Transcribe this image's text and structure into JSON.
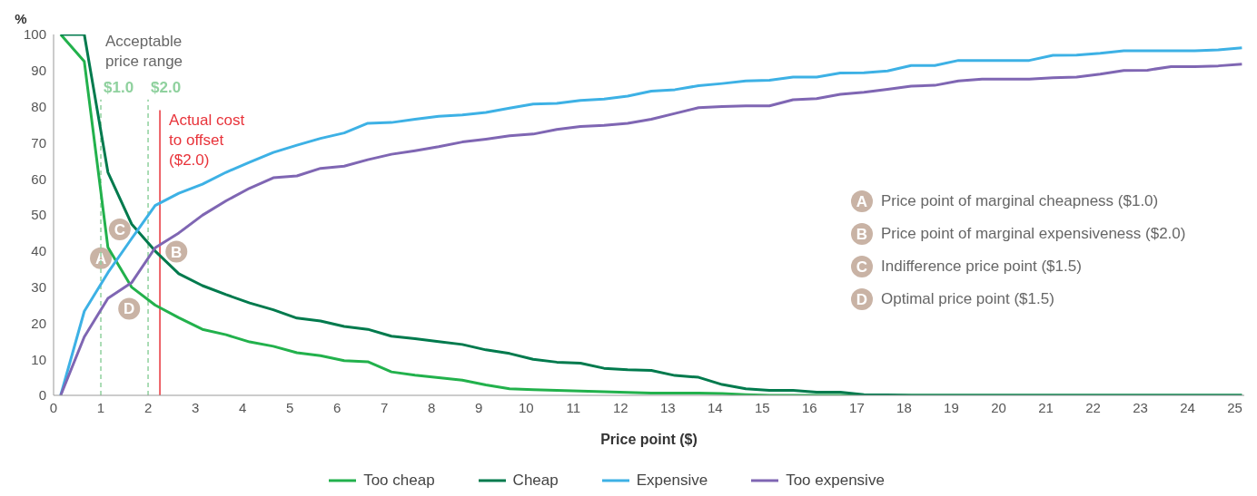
{
  "chart_data": {
    "type": "line",
    "ylabel": "%",
    "xlabel": "Price point ($)",
    "x": [
      0.15,
      0.65,
      1.15,
      1.65,
      2.15,
      2.65,
      3.15,
      3.65,
      4.15,
      4.65,
      5.15,
      5.65,
      6.15,
      6.65,
      7.15,
      7.65,
      8.15,
      8.65,
      9.15,
      9.65,
      10.15,
      10.65,
      11.15,
      11.65,
      12.15,
      12.65,
      13.15,
      13.65,
      14.15,
      14.65,
      15.15,
      15.65,
      16.15,
      16.65,
      17.15,
      17.65,
      18.15,
      18.65,
      19.15,
      19.65,
      20.15,
      20.65,
      21.15,
      21.65,
      22.15,
      22.65,
      23.15,
      23.65,
      24.15,
      24.65,
      25.15
    ],
    "series": [
      {
        "name": "Too cheap",
        "color": "#22b14c",
        "values": [
          100,
          92.5,
          41,
          30,
          25,
          21.5,
          18.3,
          16.8,
          14.8,
          13.6,
          11.8,
          11,
          9.6,
          9.3,
          6.5,
          5.6,
          4.9,
          4.2,
          2.9,
          1.8,
          1.6,
          1.4,
          1.2,
          1,
          0.8,
          0.6,
          0.6,
          0.6,
          0.5,
          0.2,
          0,
          0,
          0,
          0,
          0,
          0,
          0,
          0,
          0,
          0,
          0,
          0,
          0,
          0,
          0,
          0,
          0,
          0,
          0,
          0,
          0
        ]
      },
      {
        "name": "Cheap",
        "color": "#007a4d",
        "values": [
          100,
          100,
          61.8,
          47.5,
          40,
          33.7,
          30.4,
          27.9,
          25.6,
          23.7,
          21.4,
          20.6,
          19.1,
          18.3,
          16.4,
          15.7,
          14.9,
          14.1,
          12.6,
          11.6,
          10,
          9.2,
          8.9,
          7.5,
          7.1,
          6.9,
          5.5,
          5,
          3,
          1.8,
          1.4,
          1.4,
          0.9,
          0.9,
          0.2,
          0.1,
          0,
          0,
          0,
          0,
          0,
          0,
          0,
          0,
          0,
          0,
          0,
          0,
          0,
          0,
          0
        ]
      },
      {
        "name": "Expensive",
        "color": "#3db1e5",
        "values": [
          0,
          23.3,
          34,
          43.4,
          52.6,
          56,
          58.5,
          61.8,
          64.6,
          67.3,
          69.3,
          71.2,
          72.7,
          75.4,
          75.6,
          76.5,
          77.3,
          77.7,
          78.4,
          79.6,
          80.7,
          80.9,
          81.7,
          82.1,
          82.9,
          84.3,
          84.7,
          85.8,
          86.4,
          87.1,
          87.3,
          88.2,
          88.2,
          89.3,
          89.4,
          89.9,
          91.4,
          91.4,
          92.8,
          92.8,
          92.8,
          92.8,
          94.2,
          94.3,
          94.8,
          95.5,
          95.5,
          95.5,
          95.5,
          95.7,
          96.3
        ]
      },
      {
        "name": "Too expensive",
        "color": "#7f66b3",
        "values": [
          0,
          16.2,
          26.9,
          31.2,
          40.9,
          45,
          49.9,
          53.9,
          57.4,
          60.3,
          60.8,
          62.9,
          63.5,
          65.3,
          66.8,
          67.8,
          68.9,
          70.2,
          71,
          71.9,
          72.4,
          73.7,
          74.5,
          74.8,
          75.4,
          76.5,
          78.1,
          79.7,
          80,
          80.2,
          80.2,
          81.9,
          82.2,
          83.4,
          84,
          84.8,
          85.7,
          85.9,
          87.1,
          87.6,
          87.6,
          87.6,
          88,
          88.2,
          89,
          90,
          90.1,
          91.1,
          91.1,
          91.3,
          91.8
        ]
      }
    ],
    "xlim": [
      0,
      25.2
    ],
    "xticks": [
      0,
      1,
      2,
      3,
      4,
      5,
      6,
      7,
      8,
      9,
      10,
      11,
      12,
      13,
      14,
      15,
      16,
      17,
      18,
      19,
      20,
      21,
      22,
      23,
      24,
      25
    ],
    "ylim": [
      0,
      100
    ],
    "yticks": [
      0,
      10,
      20,
      30,
      40,
      50,
      60,
      70,
      80,
      90,
      100
    ],
    "ref_lines": [
      {
        "axis": "x",
        "value": 1,
        "label": "$1.0",
        "color": "#8fd19e",
        "line_style": "dashed"
      },
      {
        "axis": "x",
        "value": 2,
        "label": "$2.0",
        "color": "#8fd19e",
        "line_style": "dashed"
      },
      {
        "axis": "x",
        "value": 2.25,
        "label": "Actual cost to offset ($2.0)",
        "color": "#e8333a",
        "line_style": "solid"
      }
    ],
    "annotations": [
      {
        "text": "A",
        "x": 1,
        "y": 38
      },
      {
        "text": "B",
        "x": 2.6,
        "y": 39.8
      },
      {
        "text": "C",
        "x": 1.4,
        "y": 46
      },
      {
        "text": "D",
        "x": 1.6,
        "y": 24
      },
      "Price point of marginal cheapness ($1.0)",
      "Price point of marginal expensiveness ($2.0)",
      "Indifference price point ($1.5)",
      "Optimal price point ($1.5)",
      "Acceptable price range"
    ],
    "grid": false,
    "legend": "bottom",
    "marker": "none",
    "line_style": "solid"
  }
}
